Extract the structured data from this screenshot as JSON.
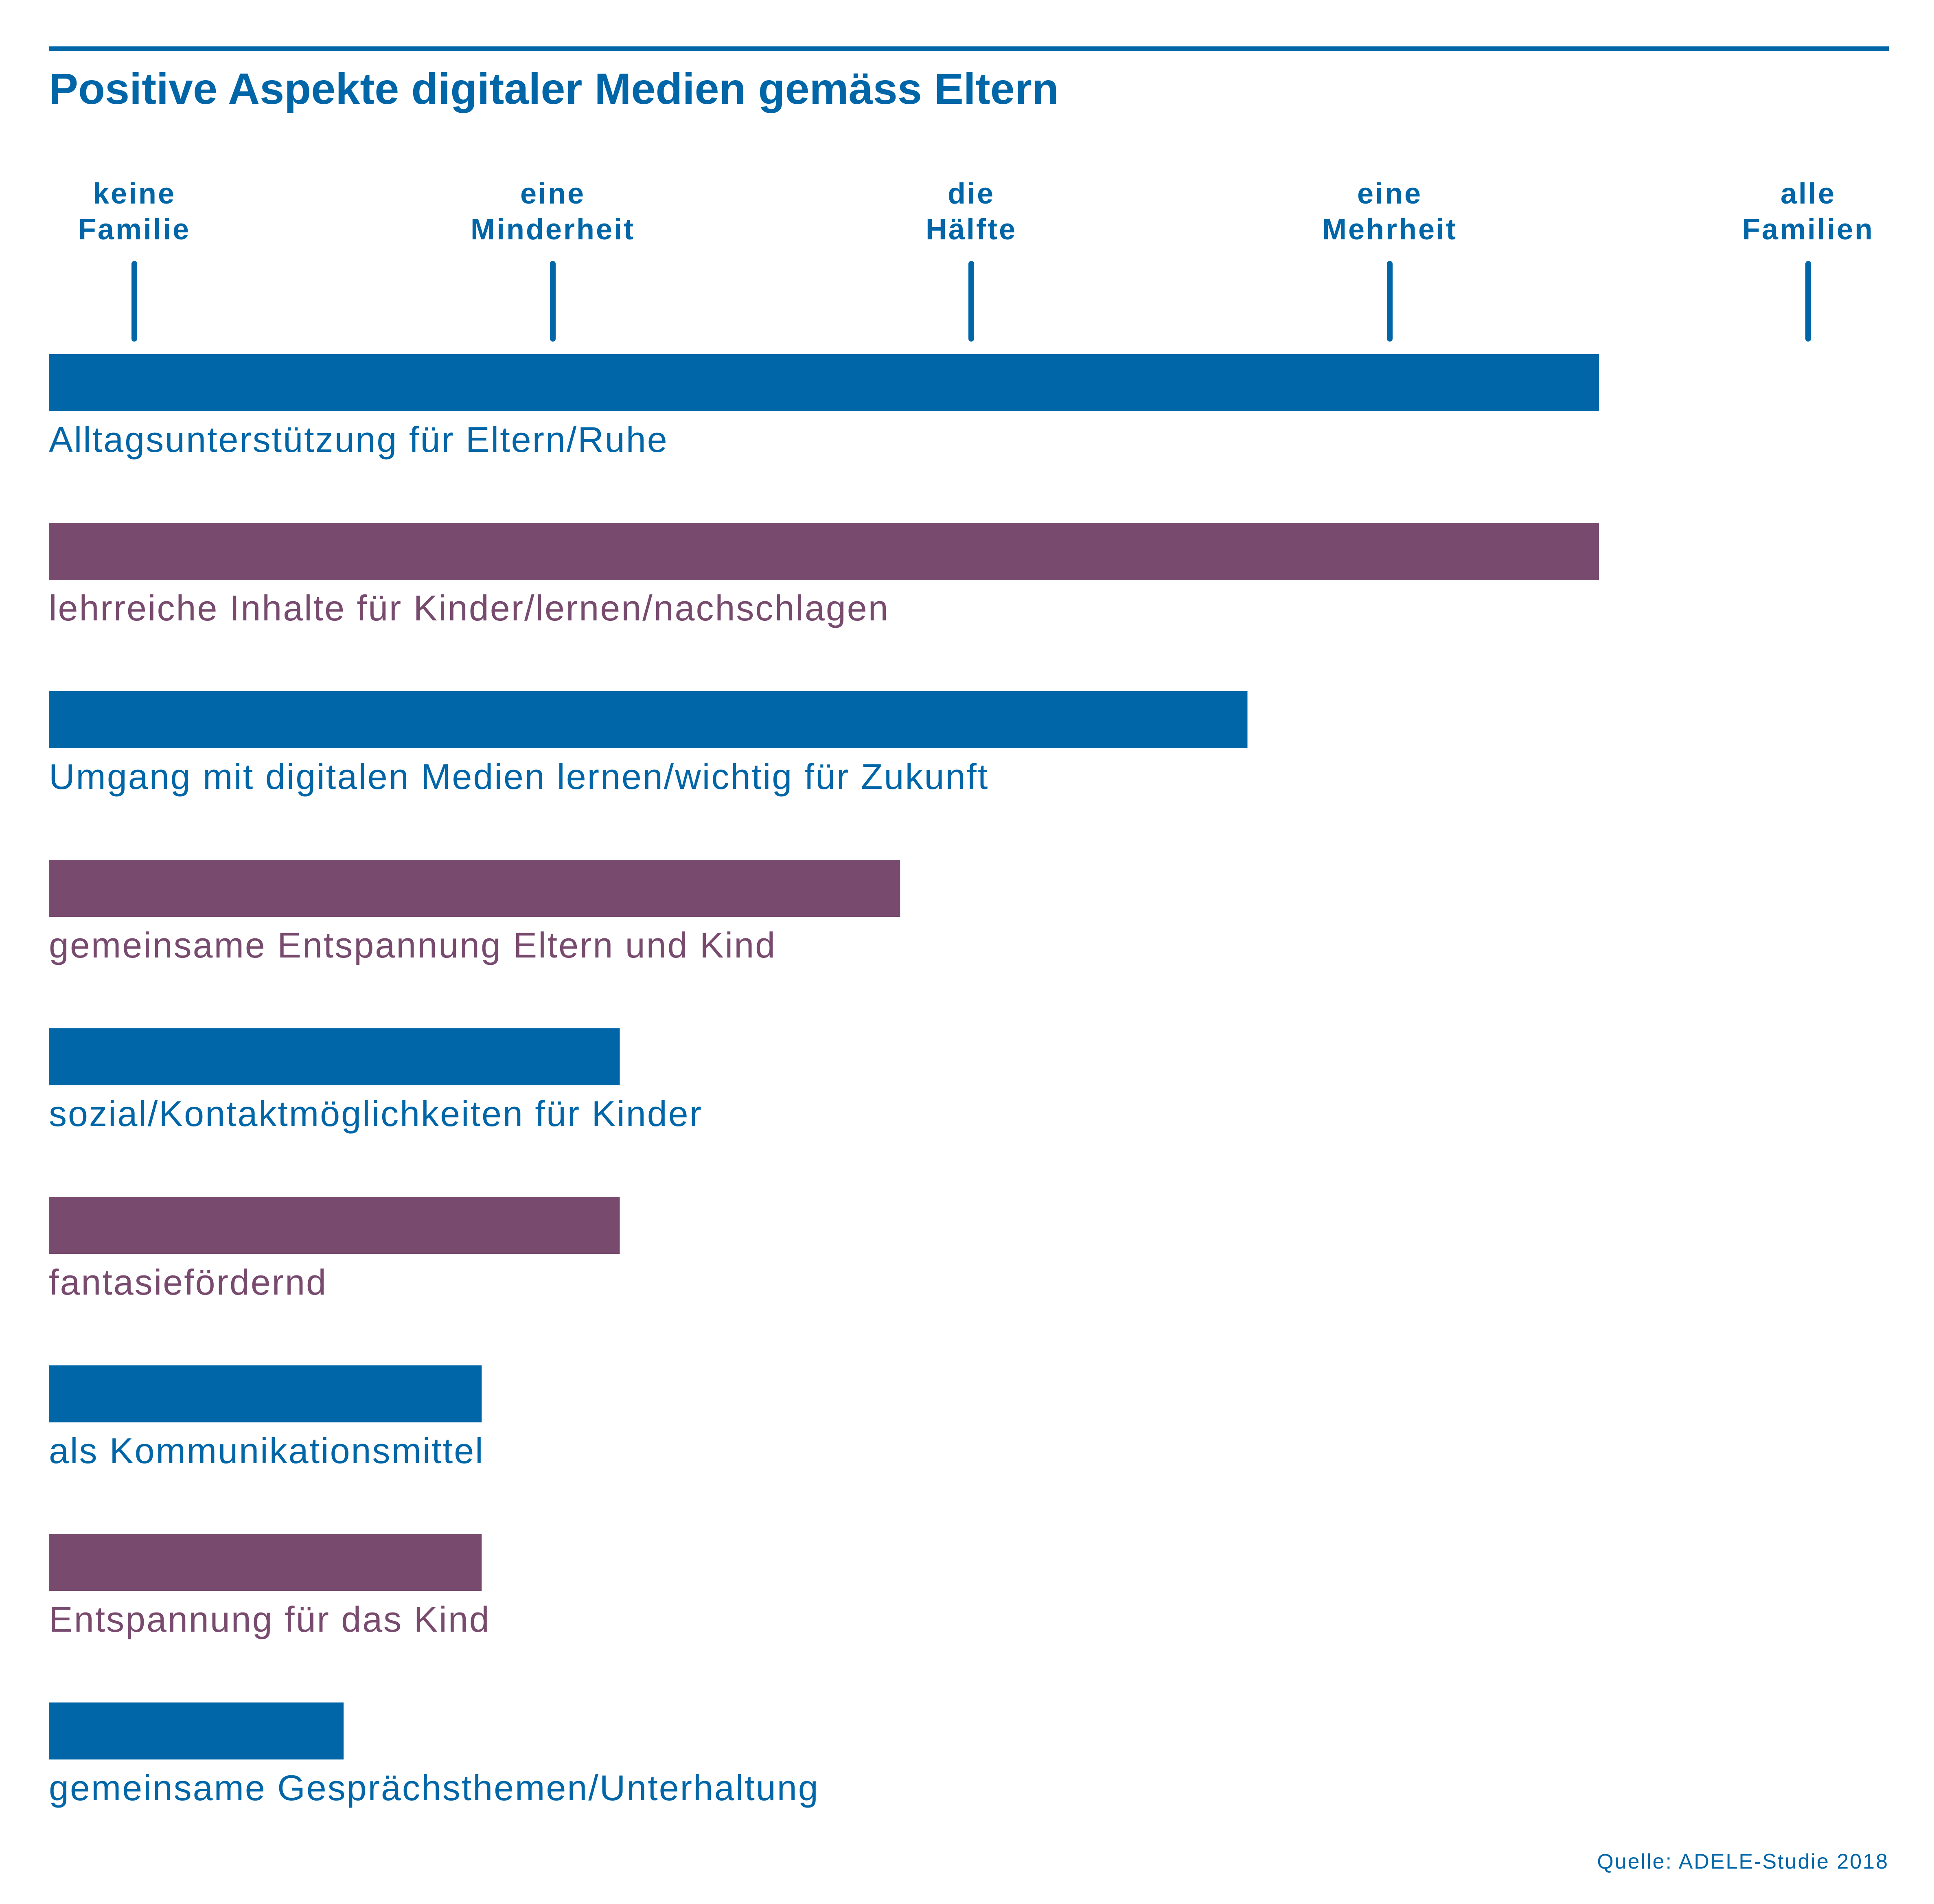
{
  "chart_data": {
    "type": "bar",
    "orientation": "horizontal",
    "title": "Positive Aspekte digitaler Medien gemäss Eltern",
    "scale_labels": [
      {
        "lines": [
          "keine",
          "Familie"
        ],
        "value": 0
      },
      {
        "lines": [
          "eine",
          "Minderheit"
        ],
        "value": 1
      },
      {
        "lines": [
          "die",
          "Hälfte"
        ],
        "value": 2
      },
      {
        "lines": [
          "eine",
          "Mehrheit"
        ],
        "value": 3
      },
      {
        "lines": [
          "alle",
          "Familien"
        ],
        "value": 4
      }
    ],
    "xlim": [
      0,
      4
    ],
    "categories": [
      "Alltagsunterstützung für Eltern/Ruhe",
      "lehrreiche Inhalte für Kinder/lernen/nachschlagen",
      "Umgang mit digitalen Medien lernen/wichtig für Zukunft",
      "gemeinsame Entspannung Eltern und Kind",
      "sozial/Kontaktmöglichkeiten für Kinder",
      "fantasiefördernd",
      "als Kommunikationsmittel",
      "Entspannung für das Kind",
      "gemeinsame Gesprächsthemen/Unterhaltung"
    ],
    "values": [
      3.5,
      3.5,
      2.66,
      1.83,
      1.16,
      1.16,
      0.83,
      0.83,
      0.5
    ],
    "bar_colors": [
      "#0066a8",
      "#774a6e",
      "#0066a8",
      "#774a6e",
      "#0066a8",
      "#774a6e",
      "#0066a8",
      "#774a6e",
      "#0066a8"
    ],
    "grid": false,
    "legend": "none"
  },
  "source": "Quelle: ADELE-Studie 2018",
  "colors": {
    "accent_blue": "#0066a8",
    "accent_purple": "#774a6e"
  }
}
